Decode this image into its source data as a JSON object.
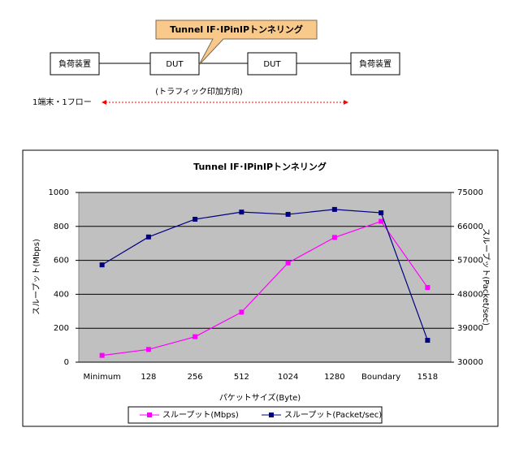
{
  "diagram": {
    "callout": "Tunnel IF･IPinIPトンネリング",
    "left_device": "負荷装置",
    "dut1": "DUT",
    "dut2": "DUT",
    "right_device": "負荷装置",
    "direction": "(トラフィック印加方向)",
    "flow": "1端末・1フロー"
  },
  "chart_data": {
    "type": "line",
    "title": "Tunnel IF･IPinIPトンネリング",
    "x_label": "パケットサイズ(Byte)",
    "y_label": "スループット(Mbps)",
    "y2_label": "スループット(Packet/sec)",
    "categories": [
      "Minimum",
      "128",
      "256",
      "512",
      "1024",
      "1280",
      "Boundary",
      "1518"
    ],
    "series": [
      {
        "name": "スループット(Mbps)",
        "color": "#ff00ff",
        "values": [
          40,
          75,
          150,
          295,
          585,
          735,
          830,
          440
        ]
      },
      {
        "name": "スループット(Packet/sec)",
        "color": "#000080",
        "axis": "y2",
        "values": [
          55800,
          63200,
          67900,
          69800,
          69200,
          70500,
          69600,
          35800
        ]
      }
    ],
    "ylim": [
      0,
      1000
    ],
    "yticks": [
      0,
      200,
      400,
      600,
      800,
      1000
    ],
    "y2lim": [
      30000,
      75000
    ],
    "y2ticks": [
      30000,
      39000,
      48000,
      57000,
      66000,
      75000
    ],
    "grid": true,
    "legend": "bottom"
  }
}
